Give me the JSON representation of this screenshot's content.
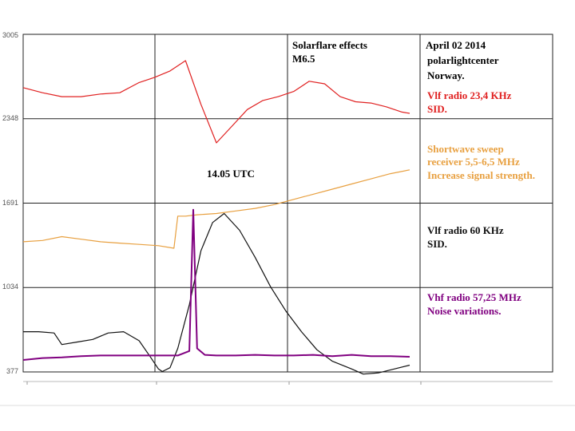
{
  "chart_data": {
    "type": "line",
    "title": "Solarflare effects",
    "subtitle": "M6.5",
    "x_label": "",
    "y_label": "",
    "y_range": [
      377,
      3005
    ],
    "y_ticks": [
      "3005",
      "2348",
      "1691",
      "1034",
      "377"
    ],
    "grid": true,
    "legend": "right",
    "annotation": "14.05 UTC",
    "station": {
      "date": "April 02 2014",
      "name": "polarlightcenter",
      "country": "Norway."
    },
    "series": [
      {
        "name": "Vlf radio 23,4 KHz",
        "note": "SID.",
        "color": "#e02020",
        "x": [
          0,
          5,
          10,
          15,
          20,
          25,
          30,
          34,
          38,
          42,
          46,
          50,
          54,
          58,
          62,
          66,
          70,
          74,
          78,
          82,
          86,
          90,
          94,
          98,
          100
        ],
        "values": [
          2590,
          2550,
          2520,
          2520,
          2540,
          2550,
          2630,
          2670,
          2720,
          2800,
          2460,
          2160,
          2290,
          2420,
          2490,
          2520,
          2560,
          2640,
          2620,
          2520,
          2480,
          2470,
          2440,
          2400,
          2390
        ]
      },
      {
        "name": "Shortwave sweep receiver 5,5-6,5 MHz",
        "note": "Increase signal strength.",
        "color": "#e8a040",
        "x": [
          0,
          5,
          10,
          15,
          20,
          25,
          30,
          35,
          39,
          40,
          42,
          45,
          50,
          55,
          60,
          65,
          70,
          75,
          80,
          85,
          90,
          95,
          100
        ],
        "values": [
          1390,
          1400,
          1430,
          1410,
          1390,
          1380,
          1370,
          1360,
          1340,
          1590,
          1590,
          1600,
          1610,
          1630,
          1650,
          1680,
          1720,
          1760,
          1800,
          1840,
          1880,
          1920,
          1950
        ]
      },
      {
        "name": "Vlf radio 60 KHz",
        "note": "SID.",
        "color": "#111111",
        "x": [
          0,
          4,
          8,
          10,
          14,
          18,
          22,
          26,
          30,
          33,
          35,
          36,
          38,
          40,
          43,
          46,
          49,
          52,
          56,
          60,
          64,
          68,
          72,
          76,
          80,
          85,
          88,
          92,
          96,
          100
        ],
        "values": [
          690,
          690,
          680,
          590,
          610,
          630,
          680,
          690,
          620,
          490,
          400,
          380,
          410,
          560,
          900,
          1320,
          1540,
          1610,
          1480,
          1270,
          1040,
          850,
          690,
          550,
          460,
          400,
          360,
          370,
          400,
          430
        ]
      },
      {
        "name": "Vhf radio 57,25 MHz",
        "note": "Noise variations.",
        "color": "#800080",
        "x": [
          0,
          5,
          10,
          15,
          20,
          25,
          30,
          35,
          40,
          43,
          44,
          45,
          47,
          50,
          55,
          60,
          65,
          70,
          75,
          80,
          85,
          90,
          95,
          100
        ],
        "values": [
          470,
          485,
          490,
          500,
          505,
          505,
          505,
          505,
          505,
          540,
          1640,
          560,
          510,
          505,
          505,
          510,
          505,
          505,
          510,
          500,
          510,
          500,
          500,
          495
        ]
      }
    ]
  }
}
